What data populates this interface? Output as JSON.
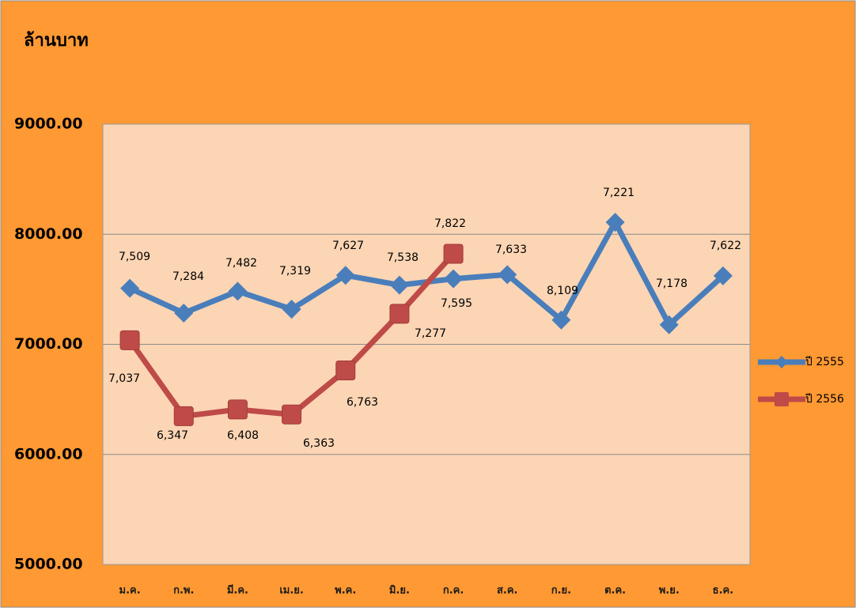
{
  "chart_data": {
    "type": "line",
    "y_axis_label": "ล้านบาท",
    "categories": [
      "ม.ค.",
      "ก.พ.",
      "มี.ค.",
      "เม.ย.",
      "พ.ค.",
      "มิ.ย.",
      "ก.ค.",
      "ส.ค.",
      "ก.ย.",
      "ต.ค.",
      "พ.ย.",
      "ธ.ค."
    ],
    "series": [
      {
        "name": "ปี 2555",
        "color": "#4a7ebb",
        "marker": "diamond",
        "values": [
          7509,
          7284,
          7482,
          7319,
          7627,
          7538,
          7595,
          7633,
          7221,
          8109,
          7178,
          7622
        ],
        "value_labels": [
          "7,509",
          "7,284",
          "7,482",
          "7,319",
          "7,627",
          "7,538",
          "7,595",
          "7,633",
          "7,221",
          "8,109",
          "7,178",
          "7,622"
        ]
      },
      {
        "name": "ปี 2556",
        "color": "#be4b48",
        "marker": "square",
        "values": [
          7037,
          6347,
          6408,
          6363,
          6763,
          7277,
          7822,
          null,
          null,
          null,
          null,
          null
        ],
        "value_labels": [
          "7,037",
          "6,347",
          "6,408",
          "6,363",
          "6,763",
          "7,277",
          "7,822",
          null,
          null,
          null,
          null,
          null
        ]
      }
    ],
    "ylim": [
      5000,
      9000
    ],
    "yticks": [
      {
        "value": 5000,
        "label": "5000.00"
      },
      {
        "value": 6000,
        "label": "6000.00"
      },
      {
        "value": 7000,
        "label": "7000.00"
      },
      {
        "value": 8000,
        "label": "8000.00"
      },
      {
        "value": 9000,
        "label": "9000.00"
      }
    ],
    "grid": true,
    "legend": "right"
  }
}
